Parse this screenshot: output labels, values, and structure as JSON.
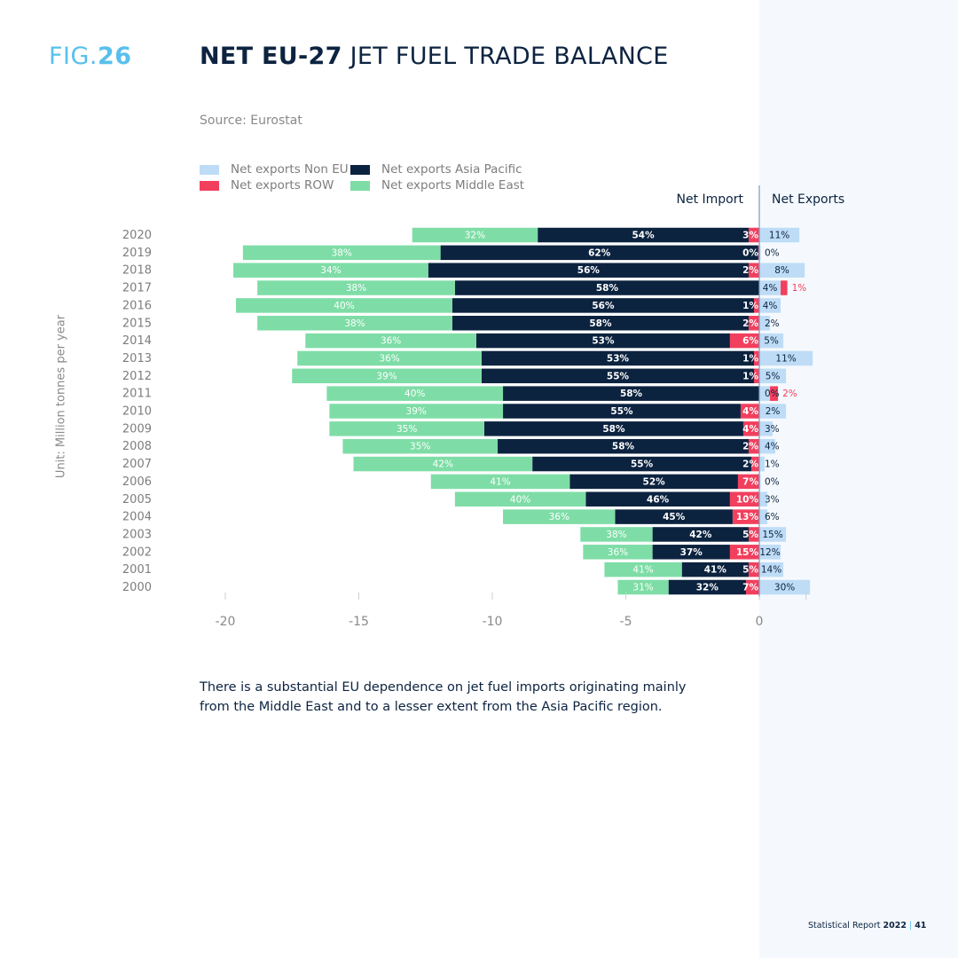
{
  "figure": {
    "prefix": "FIG.",
    "number": "26"
  },
  "title": {
    "bold": "NET EU-27",
    "rest": " JET FUEL TRADE BALANCE"
  },
  "source": "Source: Eurostat",
  "unit_label": "Unit: Million tonnes per year",
  "caption": [
    "There is a substantial EU dependence on jet fuel imports originating mainly",
    "from the Middle East and to a lesser extent from the Asia Pacific region."
  ],
  "footer": {
    "text": "Statistical Report ",
    "year": "2022",
    "sep": " | ",
    "page": "41"
  },
  "colors": {
    "non_eu": "#bedcf6",
    "asia_pacific": "#0c2340",
    "row": "#f23f5d",
    "middle_east": "#7edda6",
    "accent": "#58c0ec",
    "divider": "#7d9bbd"
  },
  "chart_data": {
    "type": "bar",
    "orientation": "horizontal",
    "stacked": true,
    "title": "NET EU-27 JET FUEL TRADE BALANCE",
    "ylabel": "Unit: Million tonnes per year",
    "side_labels": {
      "left": "Net Import",
      "right": "Net Exports"
    },
    "xlim": [
      -21,
      2
    ],
    "xticks": [
      -20,
      -15,
      -10,
      -5,
      0
    ],
    "xtick_labels": [
      "-20",
      "-15",
      "-10",
      "-5",
      "0"
    ],
    "categories": [
      "2020",
      "2019",
      "2018",
      "2017",
      "2016",
      "2015",
      "2014",
      "2013",
      "2012",
      "2011",
      "2010",
      "2009",
      "2008",
      "2007",
      "2006",
      "2005",
      "2004",
      "2003",
      "2002",
      "2001",
      "2000"
    ],
    "legend": [
      {
        "name": "Net exports Non EU",
        "color": "#bedcf6"
      },
      {
        "name": "Net exports ROW",
        "color": "#f23f5d"
      },
      {
        "name": "Net exports Asia Pacific",
        "color": "#0c2340"
      },
      {
        "name": "Net exports Middle East",
        "color": "#7edda6"
      }
    ],
    "series": [
      {
        "name": "Net exports Middle East",
        "color": "#7edda6",
        "values": [
          -4.7,
          -7.4,
          -7.3,
          -7.4,
          -8.1,
          -7.3,
          -6.4,
          -6.9,
          -7.1,
          -6.6,
          -6.5,
          -5.8,
          -5.8,
          -6.7,
          -5.2,
          -4.9,
          -4.2,
          -2.7,
          -2.6,
          -2.9,
          -1.9
        ],
        "labels": [
          "32%",
          "38%",
          "34%",
          "38%",
          "40%",
          "38%",
          "36%",
          "36%",
          "39%",
          "40%",
          "39%",
          "35%",
          "35%",
          "42%",
          "41%",
          "40%",
          "36%",
          "38%",
          "36%",
          "41%",
          "31%"
        ]
      },
      {
        "name": "Net exports Asia Pacific",
        "color": "#0c2340",
        "values": [
          -7.9,
          -11.9,
          -12.0,
          -11.4,
          -11.3,
          -11.1,
          -9.5,
          -10.2,
          -10.2,
          -9.6,
          -8.9,
          -9.7,
          -9.4,
          -8.2,
          -6.3,
          -5.4,
          -4.4,
          -3.6,
          -2.9,
          -2.5,
          -2.9
        ],
        "labels": [
          "54%",
          "62%",
          "56%",
          "58%",
          "56%",
          "58%",
          "53%",
          "53%",
          "55%",
          "58%",
          "55%",
          "58%",
          "58%",
          "55%",
          "52%",
          "46%",
          "45%",
          "42%",
          "37%",
          "41%",
          "32%"
        ]
      },
      {
        "name": "Net exports ROW",
        "color": "#f23f5d",
        "values": [
          -0.4,
          -0.04,
          -0.4,
          0.25,
          -0.2,
          -0.4,
          -1.1,
          -0.2,
          -0.2,
          0.3,
          -0.7,
          -0.6,
          -0.4,
          -0.3,
          -0.8,
          -1.1,
          -1.0,
          -0.4,
          -1.1,
          -0.4,
          -0.5
        ],
        "labels": [
          "3%",
          "0%",
          "2%",
          "1%",
          "1%",
          "2%",
          "6%",
          "1%",
          "1%",
          "2%",
          "4%",
          "4%",
          "2%",
          "2%",
          "7%",
          "10%",
          "13%",
          "5%",
          "15%",
          "5%",
          "7%"
        ]
      },
      {
        "name": "Net exports Non EU",
        "color": "#bedcf6",
        "values": [
          1.5,
          0.05,
          1.7,
          0.8,
          0.8,
          0.4,
          0.9,
          2.0,
          1.0,
          0.4,
          1.0,
          0.5,
          0.6,
          0.2,
          0.05,
          0.3,
          0.3,
          1.0,
          0.8,
          0.9,
          1.9
        ],
        "labels": [
          "11%",
          "0%",
          "8%",
          "4%",
          "4%",
          "2%",
          "5%",
          "11%",
          "5%",
          "0%",
          "2%",
          "3%",
          "4%",
          "1%",
          "0%",
          "3%",
          "6%",
          "15%",
          "12%",
          "14%",
          "30%"
        ]
      }
    ]
  }
}
